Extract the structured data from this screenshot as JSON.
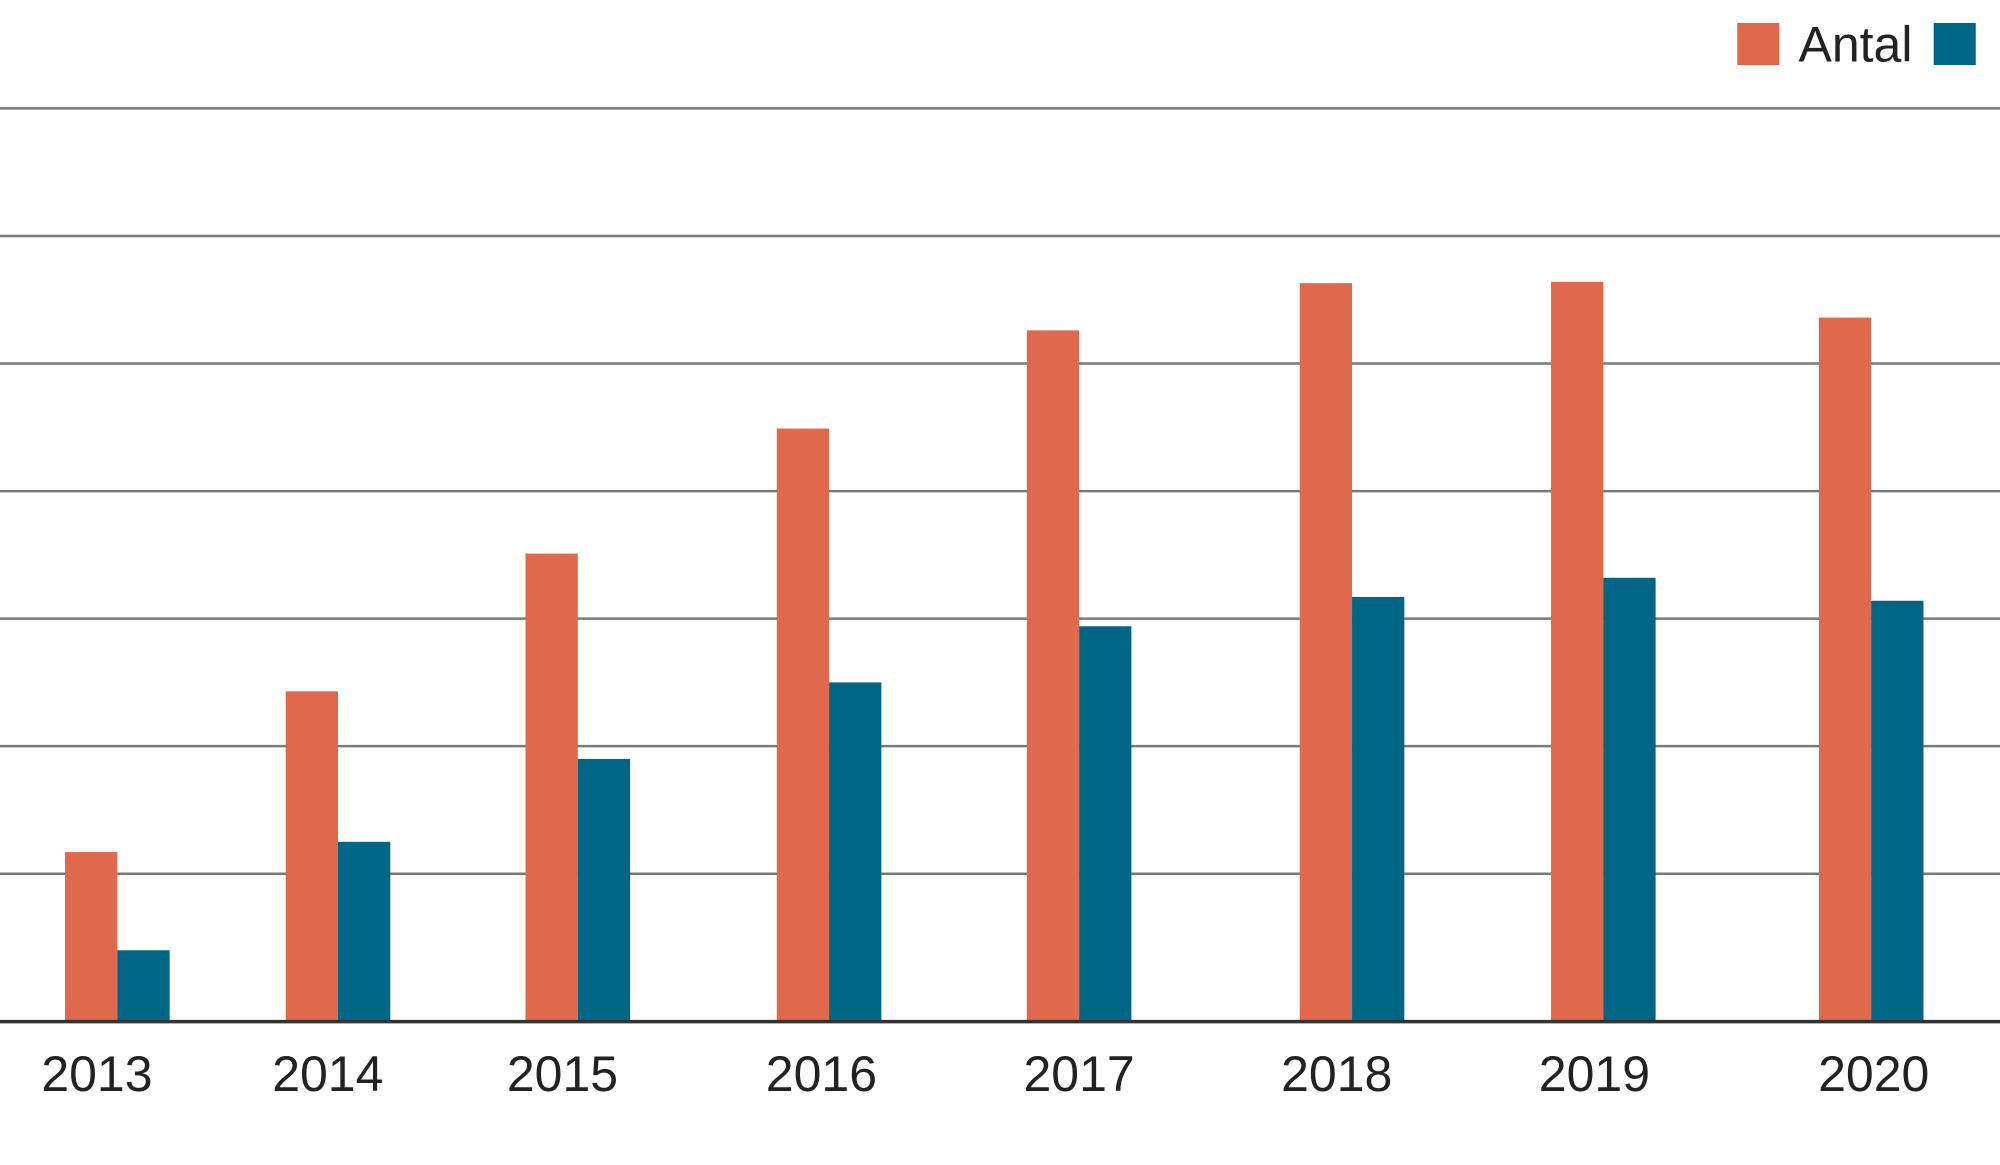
{
  "chart_data": {
    "type": "bar",
    "categories": [
      "2013",
      "2014",
      "2015",
      "2016",
      "2017",
      "2018",
      "2019",
      "2020"
    ],
    "series": [
      {
        "name": "Antal",
        "color": "#e0694d",
        "values": [
          1.33,
          2.59,
          3.67,
          4.65,
          5.42,
          5.79,
          5.8,
          5.52
        ]
      },
      {
        "color": "#006685",
        "values": [
          0.56,
          1.41,
          2.06,
          2.66,
          3.1,
          3.33,
          3.48,
          3.3
        ]
      }
    ],
    "ylim": [
      0,
      8.01
    ],
    "yticks": [
      1.16,
      2.16,
      3.16,
      4.16,
      5.16,
      6.16,
      7.16
    ],
    "grid": true
  }
}
